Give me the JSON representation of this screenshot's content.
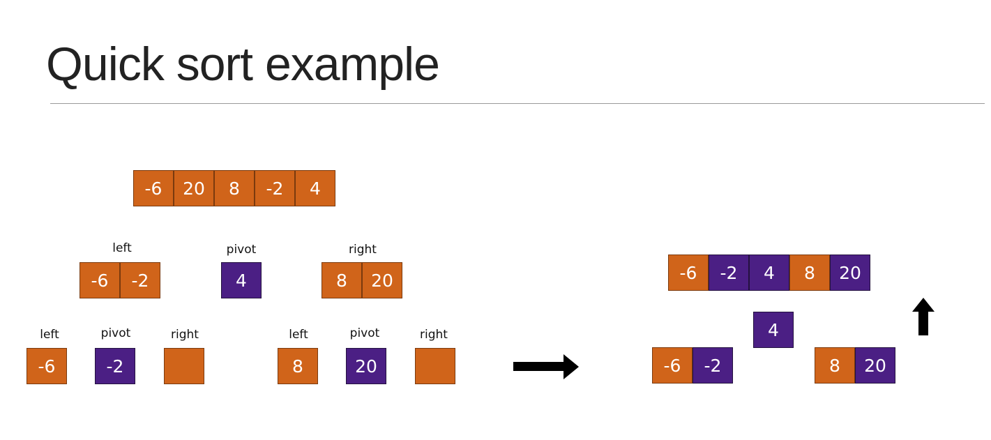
{
  "title": "Quick sort example",
  "labels": {
    "left": "left",
    "pivot": "pivot",
    "right": "right"
  },
  "colors": {
    "orange": "#d0641a",
    "purple": "#4b1f84"
  },
  "top_array": [
    "-6",
    "20",
    "8",
    "-2",
    "4"
  ],
  "level1": {
    "left": [
      "-6",
      "-2"
    ],
    "pivot": [
      "4"
    ],
    "right": [
      "8",
      "20"
    ]
  },
  "level2_left": {
    "left": [
      "-6"
    ],
    "pivot": [
      "-2"
    ],
    "right": [
      ""
    ]
  },
  "level2_right": {
    "left": [
      "8"
    ],
    "pivot": [
      "20"
    ],
    "right": [
      ""
    ]
  },
  "result": {
    "sorted": [
      "-6",
      "-2",
      "4",
      "8",
      "20"
    ],
    "pivot": [
      "4"
    ],
    "left_pair": [
      "-6",
      "-2"
    ],
    "right_pair": [
      "8",
      "20"
    ]
  },
  "icons": [
    "arrow-right-icon",
    "arrow-up-icon"
  ]
}
